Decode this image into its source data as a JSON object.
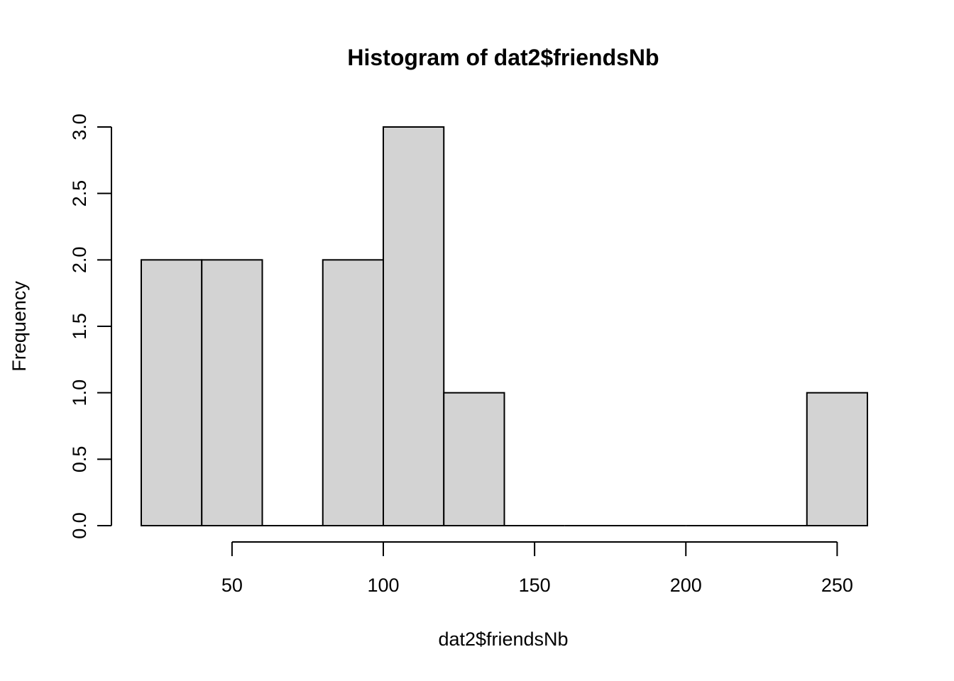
{
  "chart_data": {
    "type": "bar",
    "subtype": "histogram",
    "title": "Histogram of dat2$friendsNb",
    "xlabel": "dat2$friendsNb",
    "ylabel": "Frequency",
    "bins": [
      {
        "start": 20,
        "end": 40,
        "count": 2
      },
      {
        "start": 40,
        "end": 60,
        "count": 2
      },
      {
        "start": 60,
        "end": 80,
        "count": 0
      },
      {
        "start": 80,
        "end": 100,
        "count": 2
      },
      {
        "start": 100,
        "end": 120,
        "count": 3
      },
      {
        "start": 120,
        "end": 140,
        "count": 1
      },
      {
        "start": 140,
        "end": 160,
        "count": 0
      },
      {
        "start": 160,
        "end": 180,
        "count": 0
      },
      {
        "start": 180,
        "end": 200,
        "count": 0
      },
      {
        "start": 200,
        "end": 220,
        "count": 0
      },
      {
        "start": 220,
        "end": 240,
        "count": 0
      },
      {
        "start": 240,
        "end": 260,
        "count": 1
      }
    ],
    "xticks": [
      50,
      100,
      150,
      200,
      250
    ],
    "xtick_labels": [
      "50",
      "100",
      "150",
      "200",
      "250"
    ],
    "yticks": [
      0,
      0.5,
      1,
      1.5,
      2,
      2.5,
      3
    ],
    "ytick_labels": [
      "0.0",
      "0.5",
      "1.0",
      "1.5",
      "2.0",
      "2.5",
      "3.0"
    ],
    "xlim": [
      20,
      260
    ],
    "ylim": [
      0,
      3
    ],
    "grid": false,
    "bar_color": "#d3d3d3",
    "edge_color": "#000000"
  }
}
